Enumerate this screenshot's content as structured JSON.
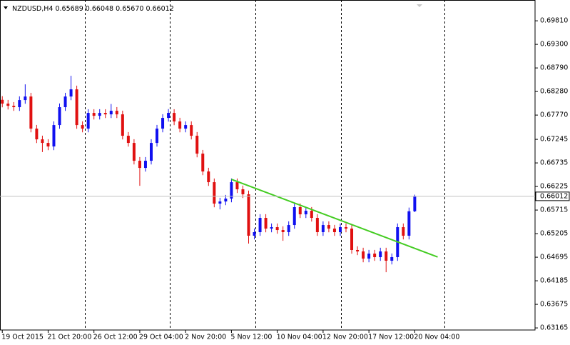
{
  "chart_data": {
    "type": "candlestick",
    "title": "NZDUSD,H4",
    "header_low_label": "0.65670",
    "categories": [
      "19 Oct 2015",
      null,
      null,
      null,
      null,
      null,
      null,
      null,
      "21 Oct 20:00",
      null,
      null,
      null,
      null,
      null,
      null,
      null,
      "26 Oct 12:00",
      null,
      null,
      null,
      null,
      null,
      null,
      null,
      "29 Oct 04:00",
      null,
      null,
      null,
      null,
      null,
      null,
      null,
      "2 Nov 20:00",
      null,
      null,
      null,
      null,
      null,
      null,
      null,
      "5 Nov 12:00",
      null,
      null,
      null,
      null,
      null,
      null,
      null,
      "10 Nov 04:00",
      null,
      null,
      null,
      null,
      null,
      null,
      null,
      "12 Nov 20:00",
      null,
      null,
      null,
      null,
      null,
      null,
      null,
      "17 Nov 12:00",
      null,
      null,
      null,
      null,
      null,
      null,
      null,
      "20 Nov 04:00"
    ],
    "open": [
      0.681,
      0.68018,
      0.67971,
      0.67941,
      0.68095,
      0.68172,
      0.67477,
      0.67245,
      0.67168,
      0.67091,
      0.67554,
      0.67941,
      0.68172,
      0.68327,
      0.67554,
      0.67477,
      0.67817,
      0.67755,
      0.67817,
      0.67786,
      0.67863,
      0.67786,
      0.67323,
      0.67168,
      0.66782,
      0.66627,
      0.66782,
      0.67168,
      0.67477,
      0.67709,
      0.67817,
      0.67632,
      0.67477,
      0.67554,
      0.67323,
      0.66936,
      0.6655,
      0.66318,
      0.65855,
      0.65901,
      0.65963,
      0.66318,
      0.66164,
      0.66056,
      0.6516,
      0.65237,
      0.65546,
      0.65314,
      0.65345,
      0.65283,
      0.65237,
      0.65391,
      0.65778,
      0.65623,
      0.657,
      0.65546,
      0.65237,
      0.65391,
      0.65314,
      0.65237,
      0.65345,
      0.65314,
      0.64851,
      0.6482,
      0.64665,
      0.64773,
      0.64696,
      0.6482,
      0.64619,
      0.64696,
      0.65345,
      0.6516,
      0.65689
    ],
    "high": [
      0.6818,
      0.68098,
      0.68051,
      0.68175,
      0.68435,
      0.68252,
      0.67557,
      0.67325,
      0.67248,
      0.67634,
      0.68021,
      0.68252,
      0.6862,
      0.68407,
      0.67634,
      0.67897,
      0.67897,
      0.67897,
      0.67897,
      0.6801,
      0.67943,
      0.67866,
      0.67403,
      0.67248,
      0.66862,
      0.66862,
      0.67248,
      0.67557,
      0.67789,
      0.679,
      0.67897,
      0.67712,
      0.67634,
      0.67634,
      0.67403,
      0.67016,
      0.6663,
      0.66398,
      0.65981,
      0.66043,
      0.66398,
      0.66398,
      0.66244,
      0.66136,
      0.65317,
      0.65626,
      0.65626,
      0.65425,
      0.65425,
      0.65363,
      0.65471,
      0.65858,
      0.65858,
      0.6578,
      0.6578,
      0.65626,
      0.65471,
      0.65471,
      0.65394,
      0.65425,
      0.65425,
      0.65394,
      0.64931,
      0.649,
      0.64853,
      0.64853,
      0.649,
      0.649,
      0.64776,
      0.65425,
      0.65425,
      0.65769,
      0.66048
    ],
    "low": [
      0.67938,
      0.67891,
      0.67861,
      0.67861,
      0.68015,
      0.67397,
      0.67165,
      0.6697,
      0.67011,
      0.67011,
      0.67474,
      0.67861,
      0.68092,
      0.67474,
      0.67397,
      0.67397,
      0.67675,
      0.67675,
      0.67706,
      0.67706,
      0.67706,
      0.67243,
      0.67088,
      0.66702,
      0.6624,
      0.66547,
      0.66702,
      0.67088,
      0.67397,
      0.67629,
      0.67552,
      0.67397,
      0.67397,
      0.67243,
      0.66856,
      0.6647,
      0.66238,
      0.65775,
      0.6573,
      0.65821,
      0.65883,
      0.66084,
      0.65976,
      0.6499,
      0.6508,
      0.65157,
      0.65234,
      0.65234,
      0.65203,
      0.6505,
      0.65157,
      0.65311,
      0.65543,
      0.65543,
      0.65466,
      0.65157,
      0.65157,
      0.65234,
      0.65157,
      0.65157,
      0.65234,
      0.64771,
      0.6474,
      0.64585,
      0.64585,
      0.64616,
      0.64616,
      0.6437,
      0.64539,
      0.64616,
      0.6508,
      0.6508,
      0.6567
    ],
    "close": [
      0.68018,
      0.67971,
      0.67941,
      0.68095,
      0.68172,
      0.67477,
      0.67245,
      0.67168,
      0.67091,
      0.67554,
      0.67941,
      0.68172,
      0.68327,
      0.67554,
      0.67477,
      0.67817,
      0.67755,
      0.67817,
      0.67786,
      0.67863,
      0.67786,
      0.67323,
      0.67168,
      0.66782,
      0.66627,
      0.66782,
      0.67168,
      0.67477,
      0.67709,
      0.67817,
      0.67632,
      0.67477,
      0.67554,
      0.67323,
      0.66936,
      0.6655,
      0.66318,
      0.65855,
      0.65901,
      0.65963,
      0.66318,
      0.66164,
      0.66056,
      0.6516,
      0.65237,
      0.65546,
      0.65314,
      0.65345,
      0.65283,
      0.65237,
      0.65391,
      0.65778,
      0.65623,
      0.657,
      0.65546,
      0.65237,
      0.65391,
      0.65314,
      0.65237,
      0.65345,
      0.65314,
      0.64851,
      0.6482,
      0.64665,
      0.64773,
      0.64696,
      0.6482,
      0.64619,
      0.64696,
      0.65345,
      0.6516,
      0.65689,
      0.66012
    ],
    "up_color": "#1010f0",
    "down_color": "#e01010",
    "trendline": {
      "x": [
        40,
        76
      ],
      "values": [
        0.6638,
        0.647
      ],
      "color": "#44cc22"
    },
    "xlim": [
      -0.4,
      93
    ],
    "ylim": [
      0.6312,
      0.7026
    ],
    "yticks": [
      {
        "value": 0.6981,
        "label": "0.69810"
      },
      {
        "value": 0.693,
        "label": "0.69300"
      },
      {
        "value": 0.6879,
        "label": "0.68790"
      },
      {
        "value": 0.6828,
        "label": "0.68280"
      },
      {
        "value": 0.6777,
        "label": "0.67770"
      },
      0.67245,
      {
        "value": 0.66735,
        "label": "0.66735"
      },
      0.66225,
      0.65715,
      0.65205,
      0.64695,
      0.64185,
      0.63675,
      0.63165
    ]
  }
}
